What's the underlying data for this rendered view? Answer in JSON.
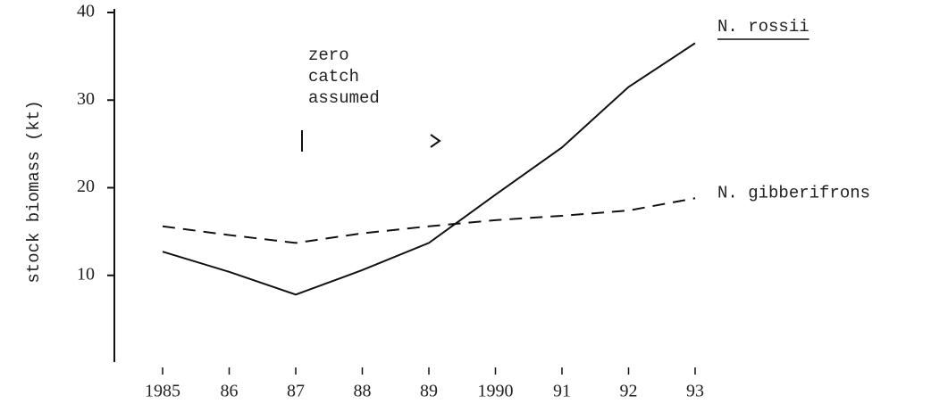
{
  "chart_data": {
    "type": "line",
    "y_label": "stock biomass (kt)",
    "categories": [
      "1985",
      "86",
      "87",
      "88",
      "89",
      "1990",
      "91",
      "92",
      "93"
    ],
    "series": [
      {
        "name": "N. rossii",
        "color": "#111111",
        "style": "solid",
        "underline": true,
        "values": [
          12.7,
          10.4,
          7.8,
          10.6,
          13.7,
          19.2,
          24.6,
          31.5,
          36.5
        ]
      },
      {
        "name": "N. gibberifrons",
        "color": "#111111",
        "style": "dashed",
        "underline": false,
        "values": [
          15.6,
          14.6,
          13.7,
          14.8,
          15.6,
          16.3,
          16.8,
          17.4,
          18.8
        ]
      }
    ],
    "annotation": [
      "zero",
      "catch",
      "assumed"
    ],
    "ylim": [
      0,
      40
    ],
    "yticks": [
      10,
      20,
      30,
      40
    ]
  }
}
